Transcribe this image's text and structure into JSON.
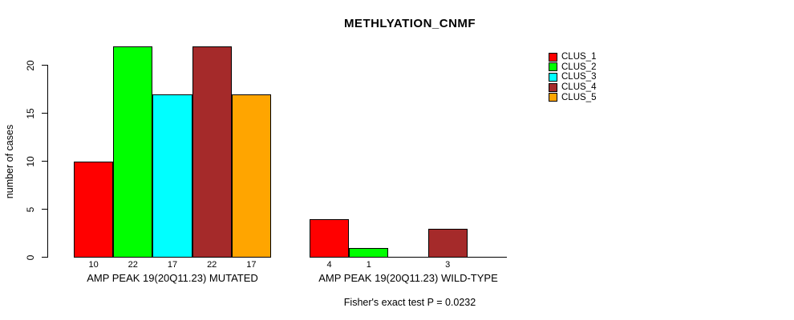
{
  "chart_data": {
    "type": "bar",
    "title": "METHLYATION_CNMF",
    "ylabel": "number of cases",
    "xlabel": "",
    "note": "Fisher's exact test P = 0.0232",
    "ylim": [
      0,
      22
    ],
    "yticks": [
      0,
      5,
      10,
      15,
      20
    ],
    "grid": false,
    "legend_position": "right",
    "bar_value_labels_shown_for_zero": false,
    "groups": [
      "AMP PEAK 19(20Q11.23) MUTATED",
      "AMP PEAK 19(20Q11.23) WILD-TYPE"
    ],
    "series": [
      {
        "name": "CLUS_1",
        "color": "#FF0000",
        "values": [
          10,
          4
        ]
      },
      {
        "name": "CLUS_2",
        "color": "#00FF00",
        "values": [
          22,
          1
        ]
      },
      {
        "name": "CLUS_3",
        "color": "#00FFFF",
        "values": [
          17,
          0
        ]
      },
      {
        "name": "CLUS_4",
        "color": "#A52A2A",
        "values": [
          22,
          3
        ]
      },
      {
        "name": "CLUS_5",
        "color": "#FFA500",
        "values": [
          17,
          0
        ]
      }
    ]
  }
}
